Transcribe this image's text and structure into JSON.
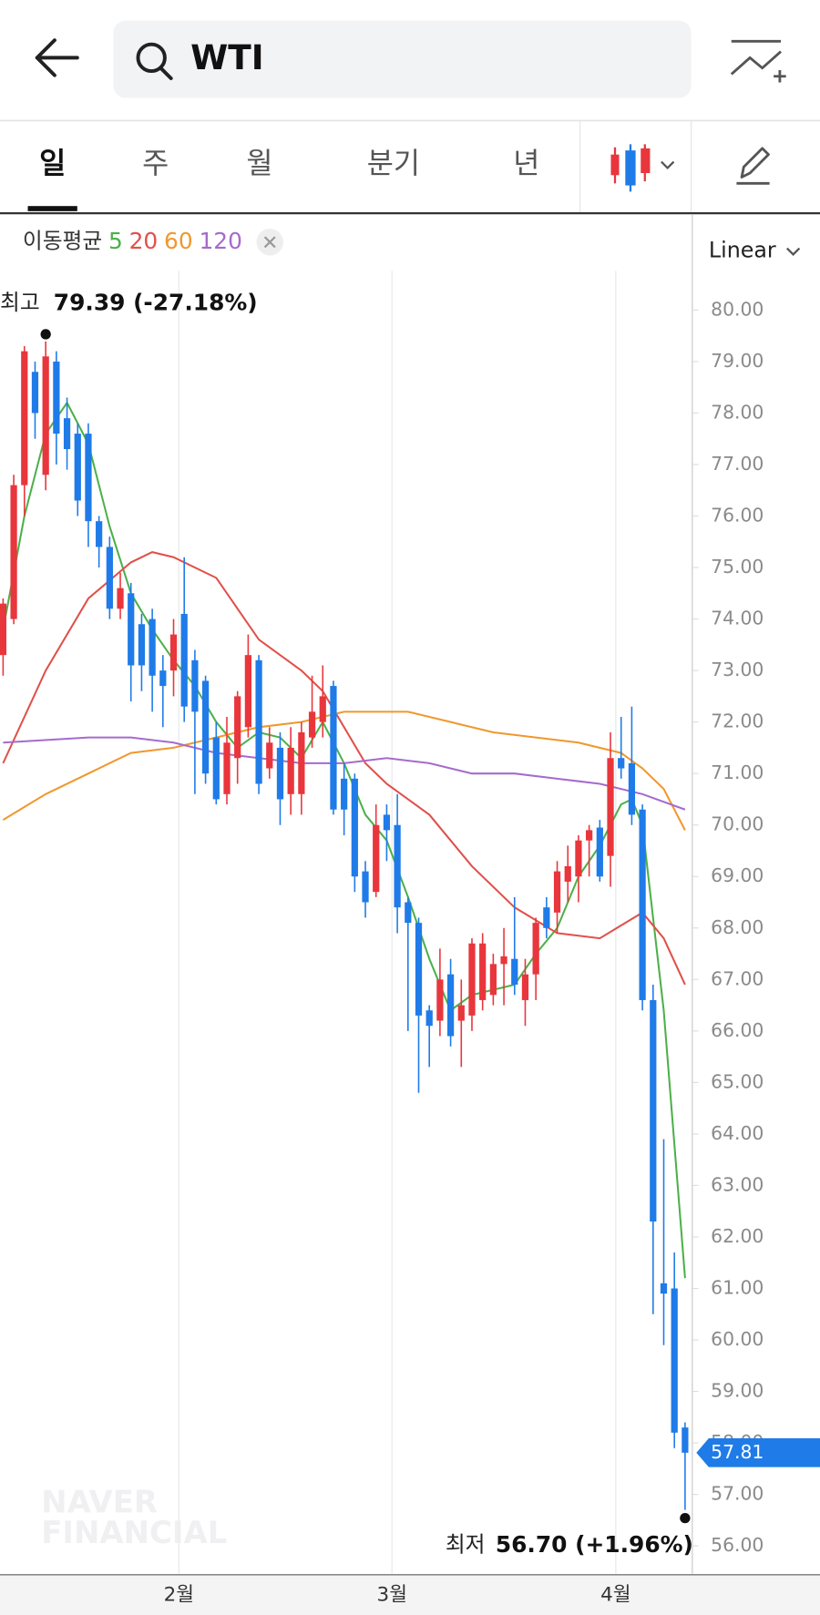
{
  "header": {
    "search": "WTI",
    "tabs": [
      "일",
      "주",
      "월",
      "분기",
      "년"
    ],
    "active_tab": 0
  },
  "chart_data": {
    "type": "candlestick",
    "ma_label": "이동평균",
    "scale_mode": "Linear",
    "watermark": [
      "NAVER",
      "FINANCIAL"
    ],
    "up_color": "#e8363c",
    "down_color": "#1f7be8",
    "open": [
      73.3,
      74.0,
      76.6,
      78.8,
      76.8,
      79.0,
      77.9,
      77.6,
      77.6,
      75.9,
      75.4,
      74.2,
      74.5,
      73.9,
      74.0,
      73.0,
      73.0,
      74.1,
      73.2,
      72.8,
      71.7,
      70.6,
      71.3,
      71.9,
      73.2,
      71.1,
      71.5,
      70.6,
      70.6,
      71.7,
      72.0,
      72.7,
      70.9,
      70.9,
      69.1,
      68.7,
      70.2,
      70.0,
      68.5,
      68.1,
      66.4,
      66.2,
      67.1,
      66.2,
      66.3,
      66.6,
      66.7,
      67.3,
      67.4,
      66.6,
      67.1,
      68.4,
      68.3,
      68.9,
      69.0,
      69.7,
      69.95,
      69.4,
      71.3,
      71.2,
      70.3,
      66.6,
      61.1,
      61.0,
      58.3
    ],
    "high": [
      74.4,
      76.8,
      79.3,
      79.0,
      79.39,
      79.2,
      78.3,
      77.8,
      77.8,
      76.0,
      75.6,
      74.9,
      74.7,
      74.1,
      74.2,
      73.3,
      74.0,
      75.2,
      73.4,
      72.9,
      72.0,
      72.1,
      72.6,
      73.7,
      73.3,
      71.9,
      71.8,
      71.9,
      72.0,
      72.9,
      73.1,
      72.8,
      71.2,
      71.0,
      69.3,
      70.4,
      70.4,
      70.6,
      68.6,
      68.2,
      66.5,
      67.6,
      67.4,
      67.0,
      67.8,
      67.9,
      67.5,
      68.0,
      68.6,
      67.4,
      68.2,
      68.6,
      69.3,
      69.6,
      69.8,
      70.0,
      70.1,
      71.8,
      72.1,
      72.3,
      70.4,
      66.9,
      63.9,
      61.7,
      58.4
    ],
    "low": [
      72.9,
      73.9,
      76.0,
      77.5,
      76.5,
      77.0,
      76.9,
      76.0,
      75.4,
      75.0,
      74.0,
      74.0,
      72.4,
      72.6,
      72.2,
      71.9,
      72.5,
      72.0,
      70.6,
      70.8,
      70.4,
      70.4,
      70.8,
      71.7,
      70.6,
      70.9,
      70.0,
      70.2,
      70.2,
      71.5,
      71.7,
      70.2,
      69.8,
      68.7,
      68.2,
      68.6,
      69.3,
      67.9,
      66.0,
      64.8,
      65.3,
      65.9,
      65.7,
      65.3,
      66.0,
      66.4,
      66.5,
      66.5,
      66.7,
      66.1,
      66.6,
      67.8,
      67.9,
      68.5,
      68.5,
      69.0,
      68.9,
      68.8,
      70.9,
      70.0,
      66.4,
      60.5,
      59.9,
      57.9,
      56.7
    ],
    "close": [
      74.3,
      76.6,
      79.2,
      78.0,
      79.1,
      77.6,
      77.3,
      76.3,
      75.9,
      75.4,
      74.2,
      74.6,
      73.1,
      73.1,
      72.9,
      72.7,
      73.7,
      72.3,
      72.2,
      71.0,
      70.5,
      71.6,
      72.5,
      73.3,
      70.8,
      71.6,
      70.5,
      71.5,
      71.8,
      72.2,
      72.5,
      70.3,
      70.3,
      69.0,
      68.5,
      70.0,
      69.9,
      68.4,
      68.1,
      66.3,
      66.1,
      67.0,
      65.9,
      66.5,
      67.7,
      67.7,
      67.3,
      67.45,
      66.9,
      67.1,
      68.1,
      68.0,
      69.1,
      69.2,
      69.7,
      69.9,
      69.0,
      71.3,
      71.1,
      70.2,
      66.6,
      62.3,
      60.9,
      58.2,
      57.81
    ],
    "series": [
      {
        "name": "5",
        "color": "#4cb04a",
        "x": [
          0,
          2,
          4,
          6,
          8,
          10,
          12,
          14,
          16,
          18,
          20,
          22,
          24,
          26,
          28,
          30,
          32,
          34,
          36,
          38,
          40,
          42,
          44,
          46,
          48,
          50,
          52,
          54,
          56,
          58,
          59,
          60,
          62,
          64
        ],
        "values": [
          73.8,
          76.0,
          77.6,
          78.2,
          77.4,
          75.8,
          74.5,
          73.8,
          73.2,
          72.7,
          72.0,
          71.5,
          71.8,
          71.7,
          71.3,
          72.0,
          71.2,
          70.2,
          69.7,
          68.6,
          67.4,
          66.4,
          66.7,
          66.8,
          66.9,
          67.5,
          68.0,
          69.0,
          69.6,
          70.4,
          70.5,
          70.0,
          66.4,
          61.2
        ]
      },
      {
        "name": "20",
        "color": "#e0504a",
        "x": [
          0,
          4,
          8,
          12,
          14,
          16,
          20,
          24,
          28,
          30,
          32,
          34,
          36,
          38,
          40,
          44,
          48,
          52,
          56,
          60,
          62,
          64
        ],
        "values": [
          71.2,
          73.0,
          74.4,
          75.1,
          75.3,
          75.2,
          74.8,
          73.6,
          73.0,
          72.6,
          71.9,
          71.2,
          70.8,
          70.5,
          70.2,
          69.2,
          68.4,
          67.9,
          67.8,
          68.3,
          67.8,
          66.9
        ]
      },
      {
        "name": "60",
        "color": "#f0982e",
        "x": [
          0,
          4,
          8,
          12,
          16,
          20,
          24,
          28,
          32,
          36,
          38,
          42,
          46,
          50,
          54,
          58,
          60,
          62,
          64
        ],
        "values": [
          70.1,
          70.6,
          71.0,
          71.4,
          71.5,
          71.7,
          71.9,
          72.0,
          72.2,
          72.2,
          72.2,
          72.0,
          71.8,
          71.7,
          71.6,
          71.4,
          71.1,
          70.7,
          69.9
        ]
      },
      {
        "name": "120",
        "color": "#a56bcc",
        "x": [
          0,
          8,
          12,
          16,
          20,
          24,
          28,
          32,
          36,
          40,
          44,
          48,
          52,
          56,
          60,
          64
        ],
        "values": [
          71.6,
          71.7,
          71.7,
          71.6,
          71.4,
          71.3,
          71.2,
          71.2,
          71.3,
          71.2,
          71.0,
          71.0,
          70.9,
          70.8,
          70.6,
          70.3
        ]
      }
    ],
    "high_marker": {
      "label": "최고",
      "text": "79.39 (-27.18%)",
      "index": 4
    },
    "low_marker": {
      "label": "최저",
      "text": "56.70 (+1.96%)",
      "index": 64
    },
    "last_price": 57.81,
    "xlim": [
      -0.3,
      65.0
    ],
    "xticks": [
      {
        "value": 16.5,
        "label": "2월"
      },
      {
        "value": 36.5,
        "label": "3월"
      },
      {
        "value": 57.5,
        "label": "4월"
      }
    ],
    "ylim": [
      55.46,
      81.86
    ],
    "yticks": [
      {
        "value": 56,
        "label": "56.00"
      },
      {
        "value": 57,
        "label": "57.00"
      },
      {
        "value": 58,
        "label": "58.00"
      },
      {
        "value": 59,
        "label": "59.00"
      },
      {
        "value": 60,
        "label": "60.00"
      },
      {
        "value": 61,
        "label": "61.00"
      },
      {
        "value": 62,
        "label": "62.00"
      },
      {
        "value": 63,
        "label": "63.00"
      },
      {
        "value": 64,
        "label": "64.00"
      },
      {
        "value": 65,
        "label": "65.00"
      },
      {
        "value": 66,
        "label": "66.00"
      },
      {
        "value": 67,
        "label": "67.00"
      },
      {
        "value": 68,
        "label": "68.00"
      },
      {
        "value": 69,
        "label": "69.00"
      },
      {
        "value": 70,
        "label": "70.00"
      },
      {
        "value": 71,
        "label": "71.00"
      },
      {
        "value": 72,
        "label": "72.00"
      },
      {
        "value": 73,
        "label": "73.00"
      },
      {
        "value": 74,
        "label": "74.00"
      },
      {
        "value": 75,
        "label": "75.00"
      },
      {
        "value": 76,
        "label": "76.00"
      },
      {
        "value": 77,
        "label": "77.00"
      },
      {
        "value": 78,
        "label": "78.00"
      },
      {
        "value": 79,
        "label": "79.00"
      },
      {
        "value": 80,
        "label": "80.00"
      }
    ]
  }
}
